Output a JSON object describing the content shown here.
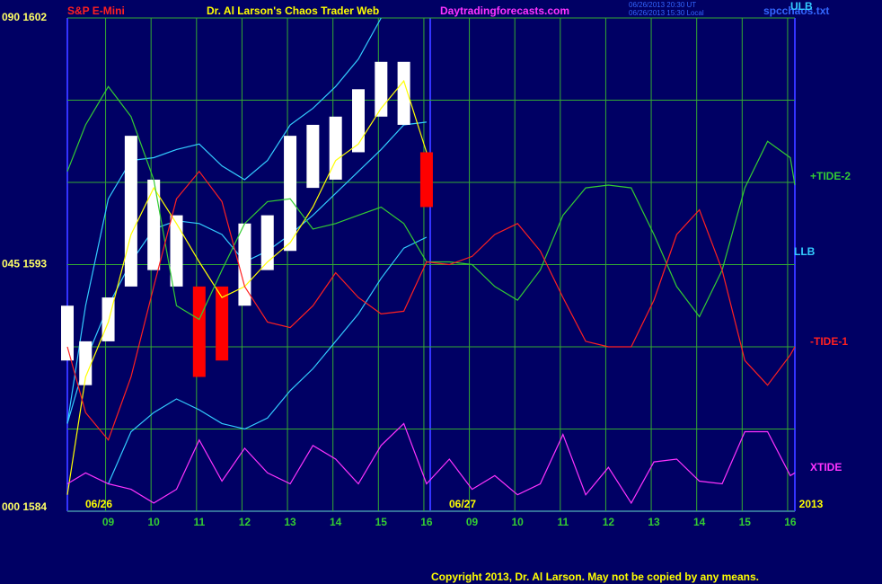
{
  "chart_data": {
    "type": "line",
    "title": "S&P E-Mini",
    "header": "Dr. Al Larson's Chaos Trader Web",
    "site": "Daytradingforecasts.com",
    "timestamps": [
      "06/26/2013 20:30 UT",
      "06/26/2013 15:30 Local"
    ],
    "file": "spcchaos.txt",
    "copyright": "Copyright 2013, Dr. Al Larson. May not be copied by any means.",
    "date_labels": [
      "06/26",
      "06/27",
      "2013"
    ],
    "x": [
      -0.9,
      -0.5,
      0,
      0.5,
      1,
      1.5,
      2,
      2.5,
      3,
      3.5,
      4,
      4.5,
      5,
      5.5,
      6,
      6.5,
      7,
      7.5,
      8,
      8.5,
      9,
      9.5,
      10,
      10.5,
      11,
      11.5,
      12,
      12.5,
      13,
      13.5,
      14,
      14.5,
      15,
      15.1
    ],
    "xlim": [
      -0.9,
      15.1
    ],
    "xticks": [
      {
        "value": 0,
        "label": "09"
      },
      {
        "value": 1,
        "label": "10"
      },
      {
        "value": 2,
        "label": "11"
      },
      {
        "value": 3,
        "label": "12"
      },
      {
        "value": 4,
        "label": "13"
      },
      {
        "value": 5,
        "label": "14"
      },
      {
        "value": 6,
        "label": "15"
      },
      {
        "value": 7,
        "label": "16"
      },
      {
        "value": 8,
        "label": "09"
      },
      {
        "value": 9,
        "label": "10"
      },
      {
        "value": 10,
        "label": "11"
      },
      {
        "value": 11,
        "label": "12"
      },
      {
        "value": 12,
        "label": "13"
      },
      {
        "value": 13,
        "label": "14"
      },
      {
        "value": 14,
        "label": "15"
      },
      {
        "value": 15,
        "label": "16"
      }
    ],
    "ylim": [
      1584,
      1602
    ],
    "yticks": [
      {
        "value": 1602,
        "label": "090 1602"
      },
      {
        "value": 1593,
        "label": "045 1593"
      },
      {
        "value": 1584,
        "label": "000 1584"
      }
    ],
    "ygrid": [
      1587,
      1590,
      1596,
      1599
    ],
    "grid": true,
    "price_bars": {
      "colors": [
        "#ffffff",
        "#ffffff",
        "#ffffff",
        "#ffffff",
        "#ffffff",
        "#ffffff",
        "#ff0000",
        "#ff0000",
        "#ffffff",
        "#ffffff",
        "#ffffff",
        "#ffffff",
        "#ffffff",
        "#ffffff",
        "#ffffff",
        "#ffffff",
        "#ff0000",
        null,
        null,
        null,
        null,
        null,
        null,
        null,
        null,
        null,
        null,
        null,
        null,
        null,
        null,
        null,
        null,
        null
      ],
      "high": [
        1591.5,
        1590.2,
        1591.8,
        1597.7,
        1596.1,
        1594.8,
        1592.2,
        1592.2,
        1594.5,
        1594.8,
        1597.7,
        1598.1,
        1598.4,
        1599.4,
        1600.4,
        1600.4,
        1597.1,
        null,
        null,
        null,
        null,
        null,
        null,
        null,
        null,
        null,
        null,
        null,
        null,
        null,
        null,
        null,
        null,
        null
      ],
      "low": [
        1589.5,
        1588.6,
        1590.2,
        1592.2,
        1592.8,
        1592.2,
        1588.9,
        1589.5,
        1591.5,
        1592.8,
        1593.5,
        1595.8,
        1596.1,
        1597.1,
        1598.4,
        1598.1,
        1595.1,
        null,
        null,
        null,
        null,
        null,
        null,
        null,
        null,
        null,
        null,
        null,
        null,
        null,
        null,
        null,
        null,
        null
      ]
    },
    "series": [
      {
        "name": "ULB",
        "color": "#33ccff",
        "values": [
          1587.2,
          1591.5,
          1595.4,
          1596.8,
          1596.9,
          1597.2,
          1597.4,
          1596.6,
          1596.1,
          1596.8,
          1598.1,
          1598.7,
          1599.5,
          1600.5,
          1602.0,
          null,
          null,
          null,
          null,
          null,
          null,
          null,
          null,
          null,
          null,
          null,
          null,
          null,
          null,
          null,
          null,
          null,
          null,
          null
        ]
      },
      {
        "color": "#33ccff",
        "values": [
          1587.2,
          1589.5,
          1591.5,
          1593.1,
          1594.3,
          1594.6,
          1594.5,
          1594.1,
          1593.1,
          1593.5,
          1594.1,
          1594.8,
          1595.6,
          1596.4,
          1597.2,
          1598.1,
          1598.2,
          null,
          null,
          null,
          null,
          null,
          null,
          null,
          null,
          null,
          null,
          null,
          null,
          null,
          null,
          null,
          null,
          null
        ]
      },
      {
        "name": "LLB",
        "color": "#33ccff",
        "values": [
          null,
          null,
          1585.0,
          1586.9,
          1587.6,
          1588.1,
          1587.7,
          1587.2,
          1587.0,
          1587.4,
          1588.4,
          1589.2,
          1590.2,
          1591.2,
          1592.5,
          1593.6,
          1594.0,
          null,
          null,
          null,
          null,
          null,
          null,
          null,
          null,
          null,
          null,
          null,
          null,
          null,
          null,
          null,
          null,
          null
        ]
      },
      {
        "color": "#ffff00",
        "values": [
          1584.6,
          1588.9,
          1590.9,
          1594.1,
          1595.8,
          1594.5,
          1593.1,
          1591.8,
          1592.2,
          1593.1,
          1593.8,
          1595.1,
          1596.8,
          1597.4,
          1598.7,
          1599.7,
          1597.1,
          null,
          null,
          null,
          null,
          null,
          null,
          null,
          null,
          null,
          null,
          null,
          null,
          null,
          null,
          null,
          null,
          null
        ]
      },
      {
        "name": "+TIDE-2",
        "color": "#33cc33",
        "values": [
          1596.4,
          1598.1,
          1599.5,
          1598.4,
          1596.1,
          1591.5,
          1591.0,
          1592.8,
          1594.5,
          1595.3,
          1595.4,
          1594.3,
          1594.5,
          1594.8,
          1595.1,
          1594.5,
          1593.1,
          1593.1,
          1593.0,
          1592.2,
          1591.7,
          1592.8,
          1594.8,
          1595.8,
          1595.9,
          1595.8,
          1594.1,
          1592.2,
          1591.1,
          1592.8,
          1595.8,
          1597.5,
          1596.9,
          1595.9
        ]
      },
      {
        "name": "-TIDE-1",
        "color": "#ff2020",
        "values": [
          1590.0,
          1587.6,
          1586.6,
          1588.9,
          1592.2,
          1595.4,
          1596.4,
          1595.3,
          1592.2,
          1590.9,
          1590.7,
          1591.5,
          1592.7,
          1591.8,
          1591.2,
          1591.3,
          1593.1,
          1593.0,
          1593.3,
          1594.1,
          1594.5,
          1593.5,
          1591.8,
          1590.2,
          1590.0,
          1590.0,
          1591.7,
          1594.1,
          1595.0,
          1592.8,
          1589.5,
          1588.6,
          1589.7,
          1590.0
        ]
      },
      {
        "name": "XTIDE",
        "color": "#ff33ff",
        "values": [
          1585.0,
          1585.4,
          1585.0,
          1584.8,
          1584.3,
          1584.8,
          1586.6,
          1585.1,
          1586.3,
          1585.4,
          1585.0,
          1586.4,
          1585.9,
          1585.0,
          1586.4,
          1587.2,
          1585.0,
          1585.9,
          1584.8,
          1585.3,
          1584.6,
          1585.0,
          1586.8,
          1584.6,
          1585.6,
          1584.3,
          1585.8,
          1585.9,
          1585.1,
          1585.0,
          1586.9,
          1586.9,
          1585.3,
          1585.4
        ]
      }
    ]
  }
}
